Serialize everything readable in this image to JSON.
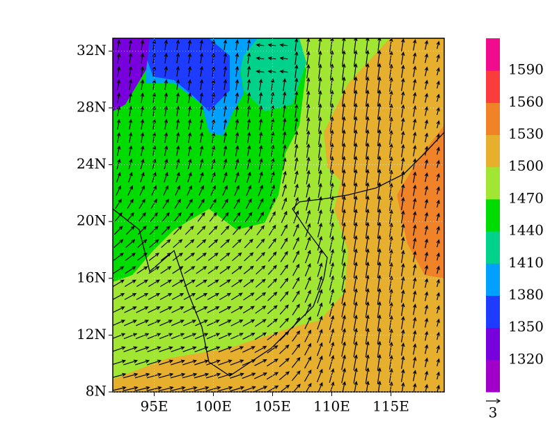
{
  "map": {
    "xlim": [
      91.5,
      119.5
    ],
    "ylim": [
      8,
      32.9
    ],
    "xticks": [
      {
        "value": 95,
        "label": "95E"
      },
      {
        "value": 100,
        "label": "100E"
      },
      {
        "value": 105,
        "label": "105E"
      },
      {
        "value": 110,
        "label": "110E"
      },
      {
        "value": 115,
        "label": "115E"
      }
    ],
    "yticks": [
      {
        "value": 8,
        "label": "8N"
      },
      {
        "value": 12,
        "label": "12N"
      },
      {
        "value": 16,
        "label": "16N"
      },
      {
        "value": 20,
        "label": "20N"
      },
      {
        "value": 24,
        "label": "24N"
      },
      {
        "value": 28,
        "label": "28N"
      },
      {
        "value": 32,
        "label": "32N"
      }
    ],
    "colorbar": {
      "colors": [
        "#a000c8",
        "#7800dc",
        "#1e3cff",
        "#00a0ff",
        "#00d28c",
        "#00dc00",
        "#a0e632",
        "#e6af2d",
        "#f08228",
        "#fa3c3c",
        "#f00c8c"
      ],
      "levels": [
        1320,
        1350,
        1380,
        1410,
        1440,
        1470,
        1500,
        1530,
        1560,
        1590
      ]
    },
    "vector_reference": 3
  }
}
